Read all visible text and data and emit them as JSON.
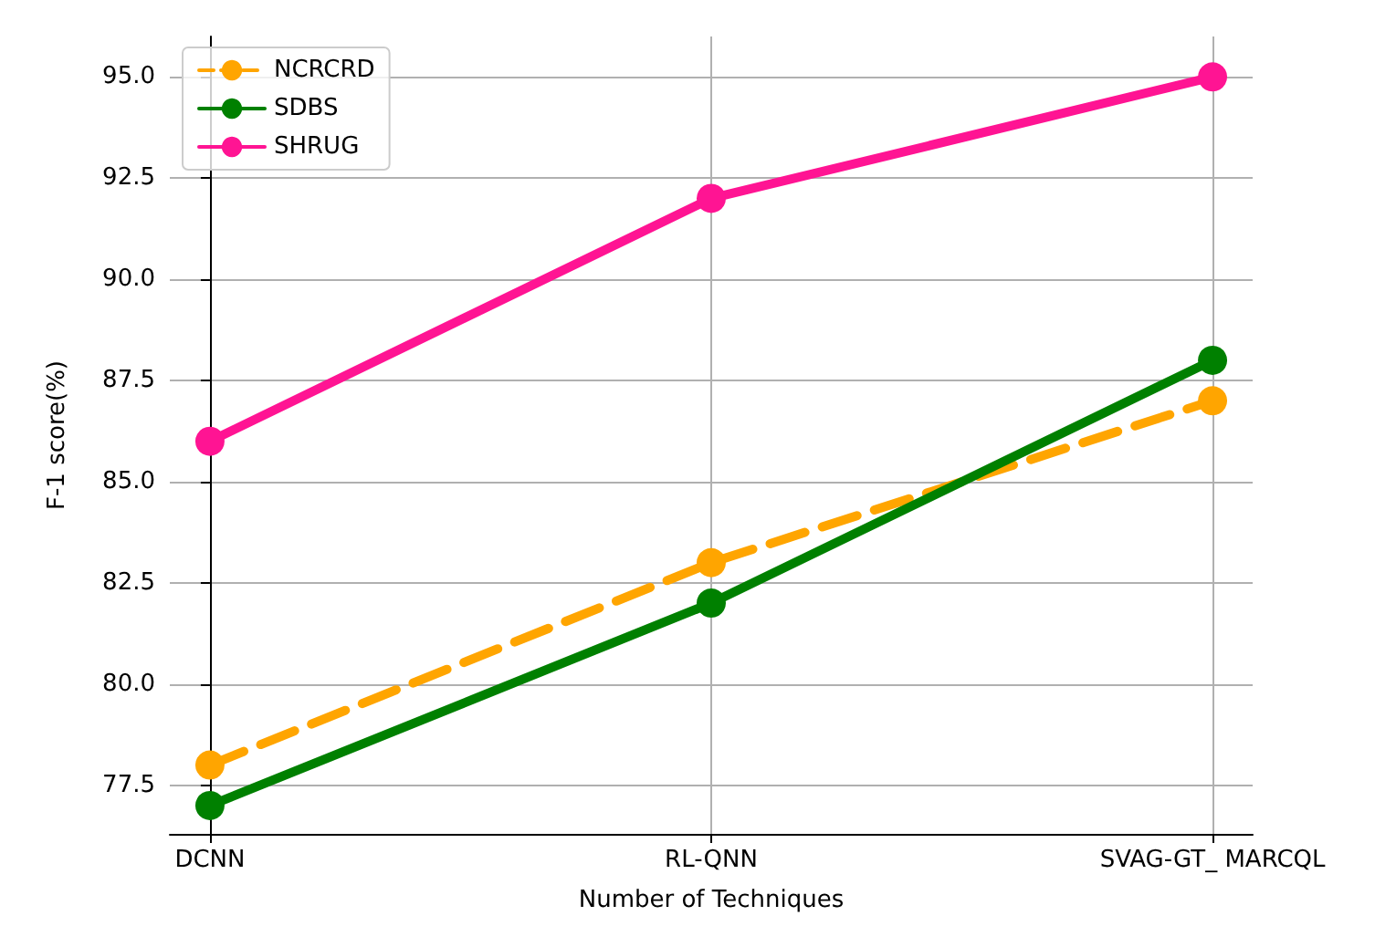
{
  "chart_data": {
    "type": "line",
    "xlabel": "Number of Techniques",
    "ylabel": "F-1 score(%)",
    "categories": [
      "DCNN",
      "RL-QNN",
      "SVAG-GT_ MARCQL"
    ],
    "series": [
      {
        "name": "NCRCRD",
        "color": "#ffa500",
        "values": [
          78,
          83,
          87
        ],
        "line_style": "dashed"
      },
      {
        "name": "SDBS",
        "color": "#008000",
        "values": [
          77,
          82,
          88
        ],
        "line_style": "solid"
      },
      {
        "name": "SHRUG",
        "color": "#ff1493",
        "values": [
          86,
          92,
          95
        ],
        "line_style": "solid"
      }
    ],
    "ylim": [
      76.3,
      96.0
    ],
    "yticks": [
      {
        "value": 77.5,
        "label": "77.5"
      },
      {
        "value": 80,
        "label": "80.0"
      },
      {
        "value": 82.5,
        "label": "82.5"
      },
      {
        "value": 85,
        "label": "85.0"
      },
      {
        "value": 87.5,
        "label": "87.5"
      },
      {
        "value": 90,
        "label": "90.0"
      },
      {
        "value": 92.5,
        "label": "92.5"
      },
      {
        "value": 95,
        "label": "95.0"
      }
    ],
    "grid": true,
    "legend": "top left",
    "marker": "circle"
  }
}
